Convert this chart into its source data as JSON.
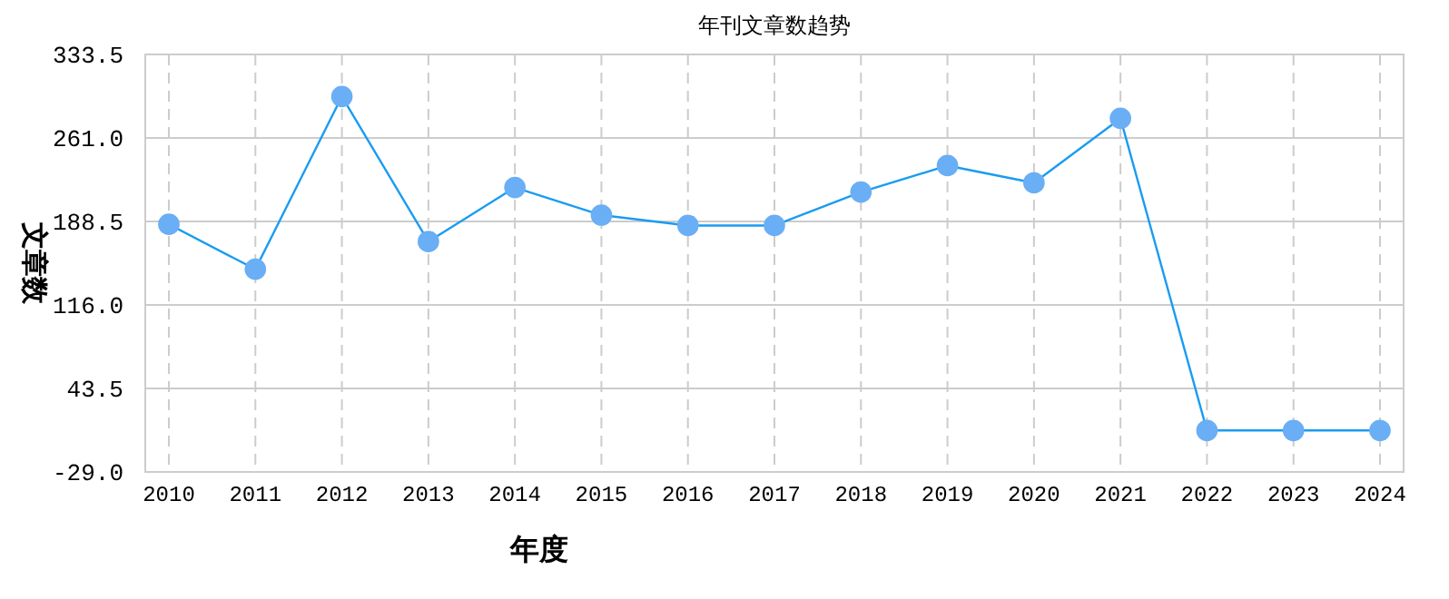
{
  "chart_data": {
    "type": "line",
    "title": "年刊文章数趋势",
    "xlabel": "年度",
    "ylabel": "文章数",
    "categories": [
      "2010",
      "2011",
      "2012",
      "2013",
      "2014",
      "2015",
      "2016",
      "2017",
      "2018",
      "2019",
      "2020",
      "2021",
      "2022",
      "2023",
      "2024"
    ],
    "series": [
      {
        "color": "#1a9cf0",
        "values": [
          186,
          147,
          297,
          171,
          218,
          194,
          185,
          185,
          214,
          237,
          222,
          278,
          7,
          7,
          7
        ]
      }
    ],
    "ylim": [
      -29,
      333.5
    ],
    "yticks": [
      {
        "value": -29,
        "label": "-29.0"
      },
      {
        "value": 43.5,
        "label": "43.5"
      },
      {
        "value": 116,
        "label": "116.0"
      },
      {
        "value": 188.5,
        "label": "188.5"
      },
      {
        "value": 261,
        "label": "261.0"
      },
      {
        "value": 333.5,
        "label": "333.5"
      }
    ],
    "grid": true,
    "marker": "circle",
    "line_style": "solid"
  }
}
